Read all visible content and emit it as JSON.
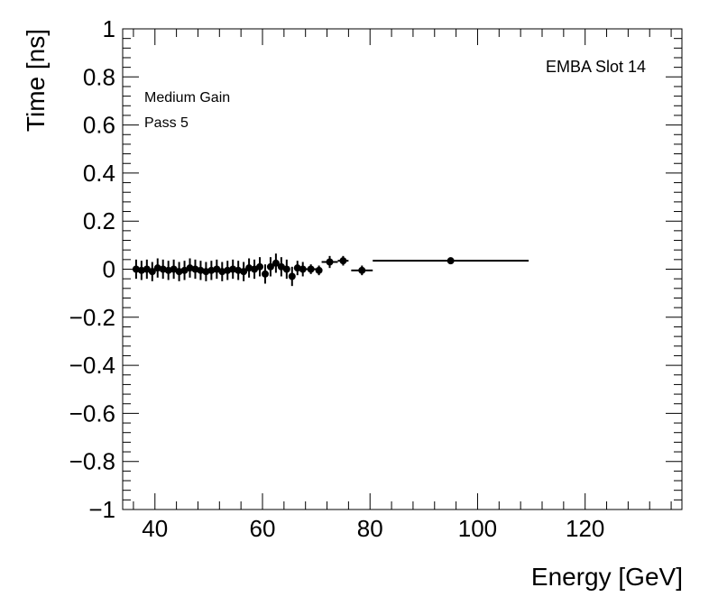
{
  "chart_data": {
    "type": "scatter",
    "title": "",
    "xlabel": "Energy [GeV]",
    "ylabel": "Time [ns]",
    "xlim": [
      34,
      138
    ],
    "ylim": [
      -1,
      1
    ],
    "x_ticks": [
      40,
      60,
      80,
      100,
      120
    ],
    "y_ticks": [
      -1,
      -0.8,
      -0.6,
      -0.4,
      -0.2,
      0,
      0.2,
      0.4,
      0.6,
      0.8,
      1
    ],
    "x_tick_labels": [
      "40",
      "60",
      "80",
      "100",
      "120"
    ],
    "y_tick_labels": [
      "−1",
      "−0.8",
      "−0.6",
      "−0.4",
      "−0.2",
      "0",
      "0.2",
      "0.4",
      "0.6",
      "0.8",
      "1"
    ],
    "annotations": [
      "Medium Gain",
      "Pass 5",
      "EMBA Slot 14"
    ],
    "grid": false,
    "legend": "none",
    "marker_color": "#000000",
    "points": [
      {
        "x": 36.5,
        "y": 0.0,
        "xerr": 0.5,
        "yerr": 0.04
      },
      {
        "x": 37.5,
        "y": -0.005,
        "xerr": 0.5,
        "yerr": 0.04
      },
      {
        "x": 38.5,
        "y": 0.0,
        "xerr": 0.5,
        "yerr": 0.04
      },
      {
        "x": 39.5,
        "y": -0.01,
        "xerr": 0.5,
        "yerr": 0.04
      },
      {
        "x": 40.5,
        "y": 0.005,
        "xerr": 0.5,
        "yerr": 0.04
      },
      {
        "x": 41.5,
        "y": 0.0,
        "xerr": 0.5,
        "yerr": 0.04
      },
      {
        "x": 42.5,
        "y": -0.005,
        "xerr": 0.5,
        "yerr": 0.04
      },
      {
        "x": 43.5,
        "y": 0.0,
        "xerr": 0.5,
        "yerr": 0.04
      },
      {
        "x": 44.5,
        "y": -0.01,
        "xerr": 0.5,
        "yerr": 0.04
      },
      {
        "x": 45.5,
        "y": -0.005,
        "xerr": 0.5,
        "yerr": 0.04
      },
      {
        "x": 46.5,
        "y": 0.005,
        "xerr": 0.5,
        "yerr": 0.04
      },
      {
        "x": 47.5,
        "y": 0.0,
        "xerr": 0.5,
        "yerr": 0.04
      },
      {
        "x": 48.5,
        "y": -0.005,
        "xerr": 0.5,
        "yerr": 0.04
      },
      {
        "x": 49.5,
        "y": -0.01,
        "xerr": 0.5,
        "yerr": 0.04
      },
      {
        "x": 50.5,
        "y": -0.005,
        "xerr": 0.5,
        "yerr": 0.04
      },
      {
        "x": 51.5,
        "y": 0.0,
        "xerr": 0.5,
        "yerr": 0.04
      },
      {
        "x": 52.5,
        "y": -0.01,
        "xerr": 0.5,
        "yerr": 0.04
      },
      {
        "x": 53.5,
        "y": -0.005,
        "xerr": 0.5,
        "yerr": 0.04
      },
      {
        "x": 54.5,
        "y": 0.0,
        "xerr": 0.5,
        "yerr": 0.04
      },
      {
        "x": 55.5,
        "y": -0.005,
        "xerr": 0.5,
        "yerr": 0.04
      },
      {
        "x": 56.5,
        "y": -0.01,
        "xerr": 0.5,
        "yerr": 0.04
      },
      {
        "x": 57.5,
        "y": 0.005,
        "xerr": 0.5,
        "yerr": 0.04
      },
      {
        "x": 58.5,
        "y": 0.0,
        "xerr": 0.5,
        "yerr": 0.04
      },
      {
        "x": 59.5,
        "y": 0.01,
        "xerr": 0.5,
        "yerr": 0.04
      },
      {
        "x": 60.5,
        "y": -0.02,
        "xerr": 0.5,
        "yerr": 0.04
      },
      {
        "x": 61.5,
        "y": 0.01,
        "xerr": 0.5,
        "yerr": 0.04
      },
      {
        "x": 62.5,
        "y": 0.025,
        "xerr": 0.5,
        "yerr": 0.04
      },
      {
        "x": 63.5,
        "y": 0.01,
        "xerr": 0.5,
        "yerr": 0.04
      },
      {
        "x": 64.5,
        "y": 0.0,
        "xerr": 0.5,
        "yerr": 0.04
      },
      {
        "x": 65.5,
        "y": -0.03,
        "xerr": 0.5,
        "yerr": 0.04
      },
      {
        "x": 66.5,
        "y": 0.005,
        "xerr": 0.5,
        "yerr": 0.03
      },
      {
        "x": 67.5,
        "y": 0.0,
        "xerr": 0.5,
        "yerr": 0.03
      },
      {
        "x": 69.0,
        "y": 0.0,
        "xerr": 1.0,
        "yerr": 0.02
      },
      {
        "x": 70.5,
        "y": -0.005,
        "xerr": 0.5,
        "yerr": 0.02
      },
      {
        "x": 72.5,
        "y": 0.03,
        "xerr": 1.5,
        "yerr": 0.025
      },
      {
        "x": 75.0,
        "y": 0.035,
        "xerr": 1.0,
        "yerr": 0.02
      },
      {
        "x": 78.5,
        "y": -0.005,
        "xerr": 2.0,
        "yerr": 0.02
      },
      {
        "x": 95.0,
        "y": 0.035,
        "xerr": 14.5,
        "yerr": 0.01
      }
    ]
  }
}
